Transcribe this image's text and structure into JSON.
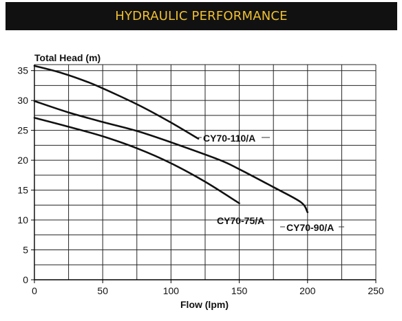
{
  "header": {
    "title": "HYDRAULIC PERFORMANCE",
    "background": "#111111",
    "color": "#f0c032"
  },
  "chart_data": {
    "type": "line",
    "ylabel": "Total Head (m)",
    "xlabel": "Flow (lpm)",
    "xlim": [
      0,
      250
    ],
    "ylim": [
      0,
      36
    ],
    "x_ticks": [
      0,
      50,
      100,
      150,
      200,
      250
    ],
    "y_ticks": [
      0,
      5,
      10,
      15,
      20,
      25,
      30,
      35
    ],
    "grid": true,
    "line_color": "#111111",
    "series": [
      {
        "name": "CY70-110/A",
        "x": [
          0,
          20,
          40,
          60,
          80,
          100,
          120
        ],
        "y": [
          35.8,
          34.6,
          33.0,
          31.0,
          28.8,
          26.3,
          23.6
        ]
      },
      {
        "name": "CY70-90/A",
        "x": [
          0,
          25,
          50,
          75,
          100,
          135,
          150,
          175,
          195,
          200
        ],
        "y": [
          29.9,
          28.0,
          26.4,
          24.9,
          23.0,
          20.1,
          18.5,
          15.5,
          13.0,
          11.3
        ]
      },
      {
        "name": "CY70-75/A",
        "x": [
          0,
          25,
          50,
          75,
          100,
          125,
          150
        ],
        "y": [
          27.1,
          25.6,
          24.0,
          22.0,
          19.5,
          16.4,
          12.8
        ]
      }
    ]
  }
}
